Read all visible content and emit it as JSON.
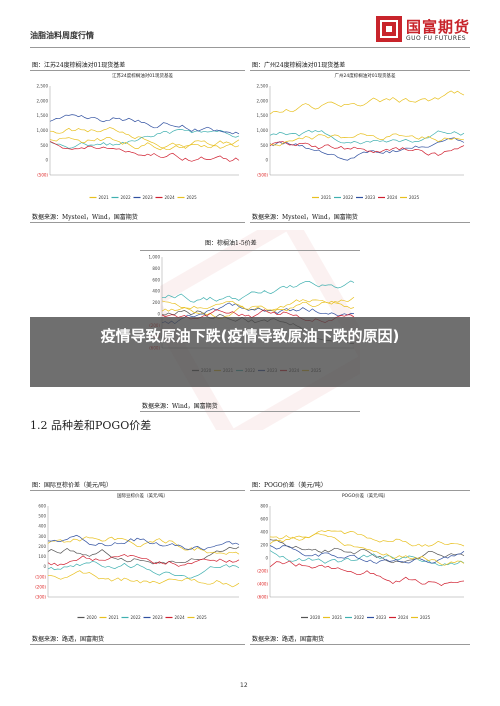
{
  "header": {
    "left_title": "油脂油料周度行情",
    "logo_cn": "国富期货",
    "logo_en": "GUO FU FUTURES"
  },
  "figures": [
    {
      "title": "图：江苏24度棕榈油对01现货基差",
      "subtitle": "江苏24度棕榈油对01现货基差",
      "yticks": [
        "2,500",
        "2,000",
        "1,500",
        "1,000",
        "500",
        "0",
        "(500)"
      ],
      "legend": [
        "2021",
        "2022",
        "2023",
        "2024",
        "2025"
      ],
      "source": "数据来源：Mysteel，Wind，国富期货"
    },
    {
      "title": "图：广州24度棕榈油对01现货基差",
      "subtitle": "广州24度棕榈油对01现货基差",
      "yticks": [
        "2,500",
        "2,000",
        "1,500",
        "1,000",
        "500",
        "0",
        "(500)"
      ],
      "legend": [
        "2021",
        "2022",
        "2023",
        "2024",
        "2025"
      ],
      "source": "数据来源：Mysteel，Wind，国富期货"
    },
    {
      "title": "图：棕榈油1-5价差",
      "subtitle": "",
      "yticks": [
        "1,000",
        "800",
        "600",
        "400",
        "200",
        "0",
        "(200)",
        "(400)",
        "(600)"
      ],
      "legend": [
        "2020",
        "2021",
        "2022",
        "2023",
        "2024",
        "2025"
      ],
      "source": "数据来源：Wind，国富期货"
    },
    {
      "title": "图：国际豆棕价差（美元/吨）",
      "subtitle": "国际豆棕价差（美元/吨）",
      "yticks": [
        "600",
        "500",
        "400",
        "300",
        "200",
        "100",
        "0",
        "(100)",
        "(200)",
        "(300)"
      ],
      "legend": [
        "2020",
        "2021",
        "2022",
        "2023",
        "2024",
        "2025"
      ],
      "source": "数据来源：路透，国富期货"
    },
    {
      "title": "图：POGO价差（美元/吨）",
      "subtitle": "POGO价差（美元/吨）",
      "yticks": [
        "800",
        "600",
        "400",
        "200",
        "0",
        "(200)",
        "(400)",
        "(600)"
      ],
      "legend": [
        "2020",
        "2021",
        "2022",
        "2023",
        "2024",
        "2025"
      ],
      "source": "数据来源：路透，国富期货"
    }
  ],
  "series_colors": {
    "2020": "#555555",
    "2021": "#e8c020",
    "2022": "#40b0b0",
    "2023": "#3050a0",
    "2024": "#d02030",
    "2025": "#e8c020"
  },
  "section_title": "1.2 品种差和POGO价差",
  "overlay_text": "疫情导致原油下跌(疫情导致原油下跌的原因)",
  "page_number": "12"
}
